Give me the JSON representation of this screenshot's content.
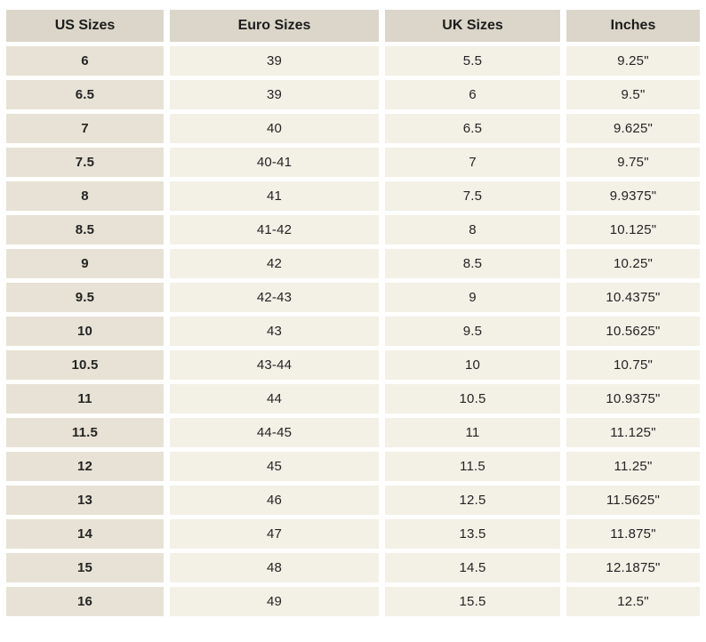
{
  "colors": {
    "page_background": "#ffffff",
    "header_cell_background": "#dbd6c9",
    "us_column_background": "#e7e2d5",
    "data_cell_background": "#f3f0e6",
    "text": "#242424"
  },
  "chart_data": {
    "type": "table",
    "columns": [
      "US Sizes",
      "Euro Sizes",
      "UK Sizes",
      "Inches"
    ],
    "rows": [
      [
        "6",
        "39",
        "5.5",
        "9.25\""
      ],
      [
        "6.5",
        "39",
        "6",
        "9.5\""
      ],
      [
        "7",
        "40",
        "6.5",
        "9.625\""
      ],
      [
        "7.5",
        "40-41",
        "7",
        "9.75\""
      ],
      [
        "8",
        "41",
        "7.5",
        "9.9375\""
      ],
      [
        "8.5",
        "41-42",
        "8",
        "10.125\""
      ],
      [
        "9",
        "42",
        "8.5",
        "10.25\""
      ],
      [
        "9.5",
        "42-43",
        "9",
        "10.4375\""
      ],
      [
        "10",
        "43",
        "9.5",
        "10.5625\""
      ],
      [
        "10.5",
        "43-44",
        "10",
        "10.75\""
      ],
      [
        "11",
        "44",
        "10.5",
        "10.9375\""
      ],
      [
        "11.5",
        "44-45",
        "11",
        "11.125\""
      ],
      [
        "12",
        "45",
        "11.5",
        "11.25\""
      ],
      [
        "13",
        "46",
        "12.5",
        "11.5625\""
      ],
      [
        "14",
        "47",
        "13.5",
        "11.875\""
      ],
      [
        "15",
        "48",
        "14.5",
        "12.1875\""
      ],
      [
        "16",
        "49",
        "15.5",
        "12.5\""
      ]
    ]
  }
}
